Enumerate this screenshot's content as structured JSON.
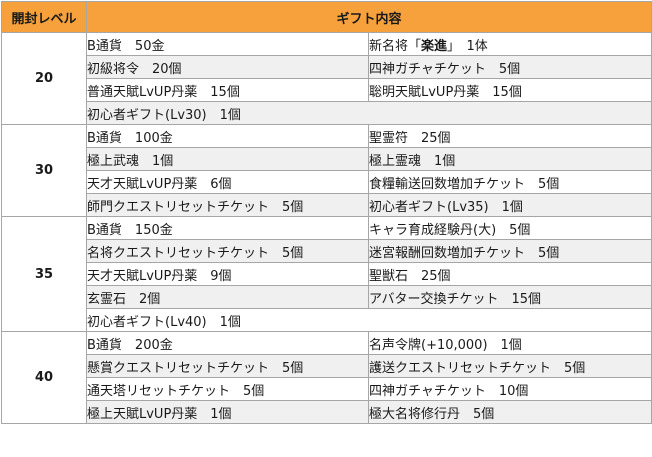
{
  "header": {
    "level_col": "開封レベル",
    "gift_col": "ギフト内容"
  },
  "groups": [
    {
      "level": "20",
      "rows": [
        [
          "B通貨　50金",
          "新名将「楽進」　1体"
        ],
        [
          "初級将令　20個",
          "四神ガチャチケット　5個"
        ],
        [
          "普通天賦LvUP丹薬　15個",
          "聡明天賦LvUP丹薬　15個"
        ],
        [
          "初心者ギフト(Lv30)　1個"
        ]
      ]
    },
    {
      "level": "30",
      "rows": [
        [
          "B通貨　100金",
          "聖霊符　25個"
        ],
        [
          "極上武魂　1個",
          "極上霊魂　1個"
        ],
        [
          "天才天賦LvUP丹薬　6個",
          "食糧輸送回数増加チケット　5個"
        ],
        [
          "師門クエストリセットチケット　5個",
          "初心者ギフト(Lv35)　1個"
        ]
      ]
    },
    {
      "level": "35",
      "rows": [
        [
          "B通貨　150金",
          "キャラ育成経験丹(大)　5個"
        ],
        [
          "名将クエストリセットチケット　5個",
          "迷宮報酬回数増加チケット　5個"
        ],
        [
          "天才天賦LvUP丹薬　9個",
          "聖獣石　25個"
        ],
        [
          "玄霊石　2個",
          "アバター交換チケット　15個"
        ],
        [
          "初心者ギフト(Lv40)　1個"
        ]
      ]
    },
    {
      "level": "40",
      "rows": [
        [
          "B通貨　200金",
          "名声令牌(+10,000)　1個"
        ],
        [
          "懸賞クエストリセットチケット　5個",
          "護送クエストリセットチケット　5個"
        ],
        [
          "通天塔リセットチケット　5個",
          "四神ガチャチケット　10個"
        ],
        [
          "極上天賦LvUP丹薬　1個",
          "極大名将修行丹　5個"
        ]
      ]
    }
  ],
  "colors": {
    "header_bg": "#f6a13b",
    "stripe": "#f0f0f0",
    "border": "#a6a6a6"
  }
}
